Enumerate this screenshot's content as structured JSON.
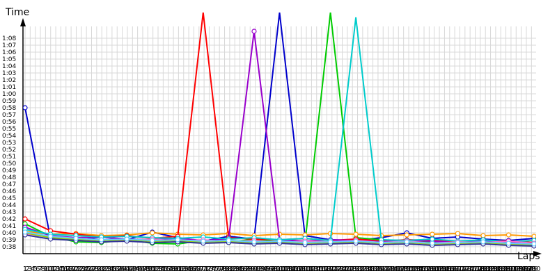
{
  "chart_data": {
    "type": "line",
    "title": "",
    "xlabel": "Laps",
    "ylabel": "Time",
    "x_tick_labels": [
      "1",
      "2",
      "3",
      "4",
      "5",
      "6",
      "7",
      "8",
      "9",
      "10",
      "11",
      "12",
      "13",
      "14",
      "15",
      "16",
      "17",
      "18",
      "19",
      "20",
      "21",
      "22",
      "23",
      "24",
      "25",
      "26",
      "27",
      "28",
      "29",
      "30",
      "31",
      "32",
      "33",
      "34",
      "35",
      "36",
      "37",
      "38",
      "39",
      "40",
      "41",
      "42",
      "43",
      "44",
      "45",
      "46",
      "47",
      "48",
      "49",
      "50",
      "51",
      "52",
      "53",
      "54",
      "55",
      "56",
      "57",
      "58",
      "59",
      "60",
      "61",
      "62",
      "63",
      "64",
      "65",
      "66",
      "67",
      "68",
      "69",
      "70",
      "71",
      "72",
      "73",
      "74",
      "75",
      "76",
      "77",
      "78",
      "79",
      "80",
      "81",
      "82",
      "83",
      "84",
      "85",
      "86",
      "87",
      "88",
      "89",
      "90",
      "91",
      "92",
      "93",
      "94",
      "95",
      "96",
      "97",
      "98",
      "99",
      "100",
      "101",
      "102",
      "103",
      "104",
      "105",
      "106",
      "107",
      "108",
      "109",
      "110",
      "111",
      "112",
      "113",
      "114",
      "115",
      "116",
      "117",
      "118",
      "119",
      "120",
      "121",
      "122",
      "123",
      "124",
      "125",
      "126",
      "127",
      "128",
      "129",
      "130",
      "131",
      "132",
      "133",
      "134",
      "135",
      "136",
      "137",
      "138",
      "139",
      "140",
      "141",
      "142",
      "143",
      "144",
      "145",
      "146",
      "147",
      "148",
      "149",
      "150",
      "151",
      "152",
      "153",
      "154",
      "155",
      "156",
      "157",
      "158",
      "159",
      "160",
      "161",
      "162",
      "163",
      "164",
      "165",
      "166",
      "167",
      "168",
      "169",
      "170",
      "171",
      "172",
      "173",
      "174",
      "175",
      "176",
      "177",
      "178",
      "179",
      "180",
      "181",
      "182",
      "183",
      "184",
      "185",
      "186",
      "187",
      "188",
      "189",
      "190",
      "191",
      "192",
      "193",
      "194",
      "195",
      "196",
      "197",
      "198",
      "199",
      "200"
    ],
    "y_tick_labels": [
      "0:38",
      "0:39",
      "0:40",
      "0:41",
      "0:42",
      "0:43",
      "0:44",
      "0:45",
      "0:46",
      "0:47",
      "0:48",
      "0:49",
      "0:50",
      "0:51",
      "0:52",
      "0:53",
      "0:54",
      "0:55",
      "0:56",
      "0:57",
      "0:58",
      "0:59",
      "1:00",
      "1:01",
      "1:02",
      "1:03",
      "1:04",
      "1:05",
      "1:06",
      "1:07",
      "1:08"
    ],
    "xlim": [
      1,
      200
    ],
    "ylim_seconds": [
      38,
      68
    ],
    "grid": true,
    "legend": "none",
    "series": [
      {
        "color": "#0000cc",
        "values": [
          58,
          39.2,
          38.9,
          39.4,
          39.0,
          40.1,
          39.3,
          38.8,
          39.5,
          39.1,
          75,
          39.6,
          39.0,
          38.9,
          39.3,
          40.0,
          39.2,
          39.4,
          39.1,
          38.9,
          39.2
        ]
      },
      {
        "color": "#00cc00",
        "values": [
          41.3,
          39.5,
          38.7,
          38.6,
          39.0,
          38.5,
          38.4,
          38.9,
          38.6,
          39.1,
          38.7,
          38.5,
          74,
          39.3,
          39.0,
          38.8,
          38.7,
          38.6,
          38.9,
          38.5,
          38.4
        ]
      },
      {
        "color": "#ff9900",
        "values": [
          40.2,
          39.8,
          39.9,
          39.6,
          39.7,
          40.0,
          39.8,
          39.7,
          39.9,
          39.6,
          39.8,
          39.7,
          39.9,
          39.8,
          39.6,
          39.7,
          39.8,
          39.9,
          39.6,
          39.7,
          39.5
        ]
      },
      {
        "color": "#ff0000",
        "values": [
          42.0,
          40.3,
          39.8,
          39.4,
          39.6,
          39.2,
          39.5,
          80,
          39.3,
          39.1,
          39.0,
          39.2,
          38.9,
          39.1,
          38.8,
          39.0,
          38.9,
          38.7,
          38.9,
          38.8,
          38.6
        ]
      },
      {
        "color": "#9900cc",
        "values": [
          40.8,
          39.6,
          39.3,
          39.4,
          39.1,
          39.0,
          39.2,
          38.9,
          39.1,
          69,
          39.0,
          38.8,
          39.0,
          38.9,
          38.7,
          38.9,
          38.8,
          38.6,
          38.8,
          38.7,
          38.5
        ]
      },
      {
        "color": "#00cccc",
        "values": [
          40.5,
          39.8,
          39.6,
          39.4,
          39.5,
          39.3,
          39.2,
          39.4,
          39.1,
          39.3,
          39.0,
          39.2,
          38.9,
          71,
          39.0,
          38.9,
          39.1,
          38.8,
          39.0,
          38.7,
          38.9
        ]
      },
      {
        "color": "#ff66cc",
        "values": [
          39.9,
          39.4,
          39.2,
          39.0,
          38.9,
          39.1,
          38.8,
          39.0,
          38.7,
          38.9,
          38.6,
          38.8,
          38.7,
          38.9,
          38.6,
          38.8,
          38.5,
          38.7,
          38.6,
          38.8,
          38.5
        ]
      },
      {
        "color": "#99cc00",
        "values": [
          40.0,
          39.3,
          39.1,
          38.9,
          39.0,
          38.8,
          38.9,
          38.7,
          38.8,
          38.6,
          38.7,
          38.5,
          38.6,
          38.7,
          38.5,
          38.6,
          38.4,
          38.5,
          38.6,
          38.4,
          38.3
        ]
      },
      {
        "color": "#333399",
        "values": [
          39.7,
          39.1,
          38.9,
          38.7,
          38.8,
          38.6,
          38.7,
          38.5,
          38.6,
          38.4,
          38.5,
          38.3,
          38.4,
          38.5,
          38.3,
          38.4,
          38.2,
          38.3,
          38.4,
          38.2,
          38.1
        ]
      },
      {
        "color": "#66ccff",
        "values": [
          40.1,
          39.5,
          39.2,
          39.0,
          39.1,
          38.9,
          39.0,
          38.8,
          38.9,
          38.7,
          38.8,
          38.6,
          38.7,
          38.8,
          38.6,
          38.7,
          38.5,
          38.6,
          38.7,
          38.5,
          38.4
        ]
      }
    ]
  }
}
